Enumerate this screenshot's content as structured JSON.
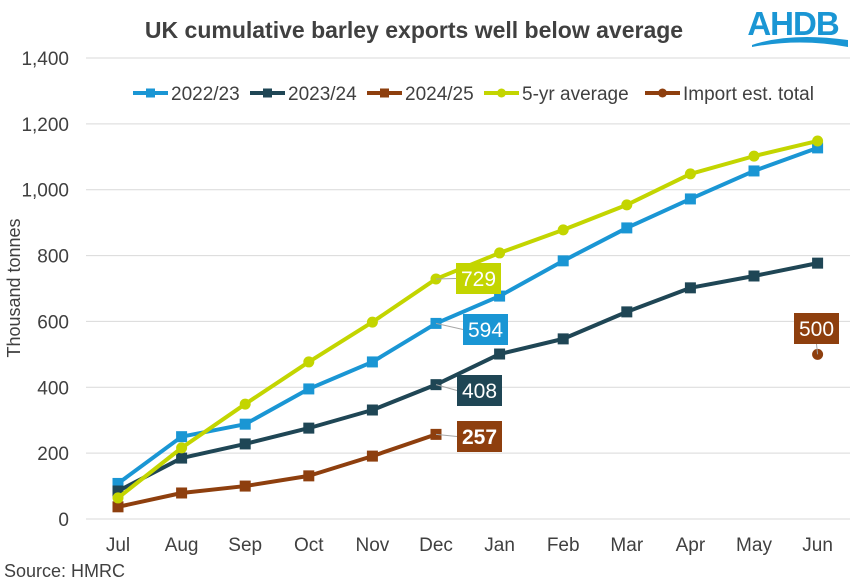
{
  "logo": {
    "text": "AHDB",
    "color": "#1a96d4"
  },
  "source": "Source: HMRC",
  "chart_data": {
    "type": "line",
    "title": "UK cumulative barley exports well below average",
    "xlabel": "",
    "ylabel": "Thousand tonnes",
    "ylim": [
      0,
      1400
    ],
    "yticks": [
      0,
      200,
      400,
      600,
      800,
      1000,
      1200,
      1400
    ],
    "ytick_labels": [
      "0",
      "200",
      "400",
      "600",
      "800",
      "1,000",
      "1,200",
      "1,400"
    ],
    "grid": true,
    "legend_position": "top",
    "categories": [
      "Jul",
      "Aug",
      "Sep",
      "Oct",
      "Nov",
      "Dec",
      "Jan",
      "Feb",
      "Mar",
      "Apr",
      "May",
      "Jun"
    ],
    "series": [
      {
        "name": "2022/23",
        "color": "#1a96d4",
        "marker": "square",
        "values": [
          108,
          250,
          288,
          395,
          477,
          594,
          677,
          784,
          884,
          972,
          1057,
          1127
        ],
        "data_label": {
          "index": 5,
          "text": "594"
        }
      },
      {
        "name": "2023/24",
        "color": "#1f4655",
        "marker": "square",
        "values": [
          85,
          185,
          228,
          276,
          331,
          408,
          501,
          547,
          629,
          702,
          738,
          777
        ],
        "data_label": {
          "index": 5,
          "text": "408"
        }
      },
      {
        "name": "2024/25",
        "color": "#8e3f0e",
        "marker": "square",
        "values": [
          37,
          79,
          100,
          131,
          191,
          257,
          null,
          null,
          null,
          null,
          null,
          null
        ],
        "data_label": {
          "index": 5,
          "text": "257"
        }
      },
      {
        "name": "5-yr average",
        "color": "#c3d500",
        "marker": "circle",
        "values": [
          64,
          216,
          349,
          477,
          598,
          729,
          808,
          878,
          954,
          1048,
          1102,
          1148
        ],
        "data_label": {
          "index": 5,
          "text": "729"
        }
      },
      {
        "name": "Import est. total",
        "color": "#8e3f0e",
        "marker": "circle",
        "values": [
          null,
          null,
          null,
          null,
          null,
          null,
          null,
          null,
          null,
          null,
          null,
          500
        ],
        "data_label": {
          "index": 11,
          "text": "500"
        }
      }
    ]
  }
}
